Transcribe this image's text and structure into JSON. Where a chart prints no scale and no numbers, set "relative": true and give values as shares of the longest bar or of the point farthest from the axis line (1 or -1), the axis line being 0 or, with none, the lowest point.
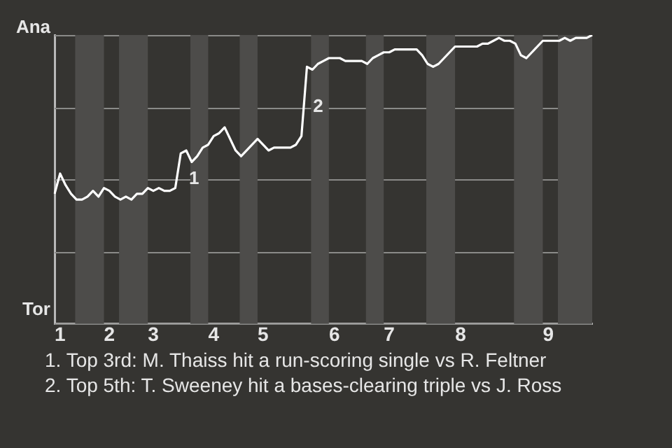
{
  "chart_data": {
    "type": "line",
    "relative": true,
    "categories": [
      null,
      "1",
      null,
      null,
      null,
      null,
      null,
      null,
      null,
      null,
      "2",
      null,
      null,
      null,
      null,
      null,
      null,
      null,
      "3",
      null,
      null,
      null,
      null,
      null,
      null,
      null,
      null,
      null,
      null,
      "4",
      null,
      null,
      null,
      null,
      null,
      null,
      null,
      null,
      "5",
      null,
      null,
      null,
      null,
      null,
      null,
      null,
      null,
      null,
      null,
      null,
      null,
      "6",
      null,
      null,
      null,
      null,
      null,
      null,
      null,
      null,
      null,
      "7",
      null,
      null,
      null,
      null,
      null,
      null,
      null,
      null,
      null,
      null,
      null,
      null,
      "8",
      null,
      null,
      null,
      null,
      null,
      null,
      null,
      null,
      null,
      null,
      null,
      null,
      null,
      null,
      null,
      "9",
      null,
      null,
      null,
      null,
      null,
      null,
      null,
      null
    ],
    "series": [
      {
        "color": "#ffffff",
        "values": [
          0.45,
          0.52,
          0.48,
          0.45,
          0.43,
          0.43,
          0.44,
          0.46,
          0.44,
          0.47,
          0.46,
          0.44,
          0.43,
          0.44,
          0.43,
          0.45,
          0.45,
          0.47,
          0.46,
          0.47,
          0.46,
          0.46,
          0.47,
          0.59,
          0.6,
          0.56,
          0.58,
          0.61,
          0.62,
          0.65,
          0.66,
          0.68,
          0.64,
          0.6,
          0.58,
          0.6,
          0.62,
          0.64,
          0.62,
          0.6,
          0.61,
          0.61,
          0.61,
          0.61,
          0.62,
          0.65,
          0.89,
          0.88,
          0.9,
          0.91,
          0.92,
          0.92,
          0.92,
          0.91,
          0.91,
          0.91,
          0.91,
          0.9,
          0.92,
          0.93,
          0.94,
          0.94,
          0.95,
          0.95,
          0.95,
          0.95,
          0.95,
          0.93,
          0.9,
          0.89,
          0.9,
          0.92,
          0.94,
          0.96,
          0.96,
          0.96,
          0.96,
          0.96,
          0.97,
          0.97,
          0.98,
          0.99,
          0.98,
          0.98,
          0.97,
          0.93,
          0.92,
          0.94,
          0.96,
          0.98,
          0.98,
          0.98,
          0.98,
          0.99,
          0.98,
          0.99,
          0.99,
          0.99,
          1
        ]
      }
    ],
    "grid": "y",
    "legend": false,
    "marker": "none",
    "line_style": "solid",
    "annotations": [
      "Ana",
      "Tor",
      "1",
      "2",
      "1. Top 3rd: M. Thaiss hit a run-scoring single vs R. Feltner",
      "2. Top 5th: T. Sweeney hit a bases-clearing triple vs J. Ross"
    ]
  }
}
